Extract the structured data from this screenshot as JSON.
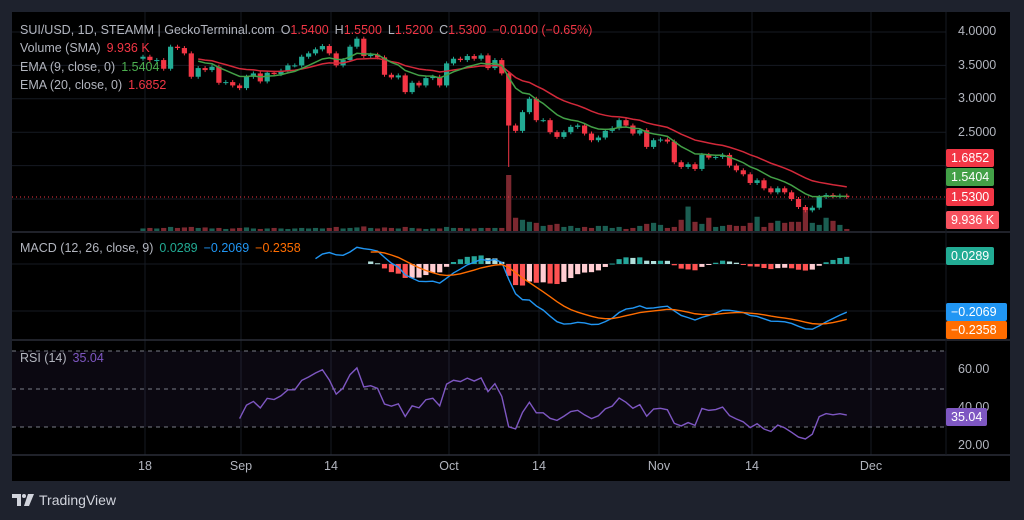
{
  "header": {
    "symbol": "SUI/USD, 1D, STEAMM | GeckoTerminal.com",
    "o_label": "O",
    "o": "1.5400",
    "h_label": "H",
    "h": "1.5500",
    "l_label": "L",
    "l": "1.5200",
    "c_label": "C",
    "c": "1.5300",
    "change": "−0.0100 (−0.65%)"
  },
  "legends": {
    "volume": {
      "label": "Volume (SMA)",
      "value": "9.936 K"
    },
    "ema9": {
      "label": "EMA (9, close, 0)",
      "value": "1.5404"
    },
    "ema20": {
      "label": "EMA (20, close, 0)",
      "value": "1.6852"
    },
    "macd": {
      "label": "MACD (12, 26, close, 9)",
      "hist": "0.0289",
      "macd": "−0.2069",
      "signal": "−0.2358"
    },
    "rsi": {
      "label": "RSI (14)",
      "value": "35.04"
    }
  },
  "price_axis": {
    "ticks": [
      "4.0000",
      "3.5000",
      "3.0000",
      "2.5000"
    ],
    "tags": {
      "ema20": "1.6852",
      "ema9": "1.5404",
      "last": "1.5300",
      "volume": "9.936 K"
    }
  },
  "macd_axis": {
    "tags": {
      "hist": "0.0289",
      "macd": "−0.2069",
      "signal": "−0.2358"
    }
  },
  "rsi_axis": {
    "ticks": [
      "60.00",
      "40.00",
      "20.00"
    ],
    "tag": "35.04"
  },
  "time_axis": {
    "ticks": [
      "18",
      "Sep",
      "14",
      "Oct",
      "14",
      "Nov",
      "14",
      "Dec"
    ]
  },
  "footer": {
    "brand": "TradingView"
  },
  "colors": {
    "up": "#22ab94",
    "down": "#f23645",
    "up_volume": "#1b5e52",
    "down_volume": "#7c2830",
    "ema9": "#43a047",
    "ema20": "#d3293a",
    "macd": "#2196f3",
    "signal": "#ff6d00",
    "rsi": "#7e57c2",
    "volume_tag": "#f7525f"
  },
  "chart_data": {
    "type": "candlestick",
    "symbol": "SUI/USD",
    "interval": "1D",
    "close": [
      3.63,
      3.58,
      3.58,
      3.45,
      3.78,
      3.76,
      3.68,
      3.33,
      3.46,
      3.43,
      3.48,
      3.24,
      3.25,
      3.2,
      3.16,
      3.33,
      3.38,
      3.26,
      3.39,
      3.37,
      3.42,
      3.5,
      3.5,
      3.63,
      3.68,
      3.74,
      3.79,
      3.68,
      3.5,
      3.58,
      3.78,
      3.9,
      3.64,
      3.66,
      3.62,
      3.36,
      3.32,
      3.35,
      3.1,
      3.24,
      3.2,
      3.31,
      3.33,
      3.2,
      3.53,
      3.6,
      3.58,
      3.64,
      3.6,
      3.65,
      3.46,
      3.58,
      3.38,
      2.6,
      2.52,
      2.8,
      3.0,
      2.68,
      2.68,
      2.5,
      2.43,
      2.5,
      2.58,
      2.6,
      2.48,
      2.38,
      2.42,
      2.52,
      2.56,
      2.68,
      2.6,
      2.48,
      2.53,
      2.28,
      2.38,
      2.39,
      2.36,
      2.05,
      1.98,
      2.02,
      1.95,
      2.16,
      2.12,
      2.13,
      2.16,
      2.0,
      1.93,
      1.87,
      1.74,
      1.78,
      1.66,
      1.6,
      1.66,
      1.6,
      1.5,
      1.38,
      1.33,
      1.37,
      1.53,
      1.56,
      1.54,
      1.55,
      1.53
    ],
    "volume_k": [
      5,
      6,
      5,
      6,
      8,
      6,
      7,
      8,
      6,
      7,
      5,
      6,
      4,
      5,
      6,
      7,
      5,
      4,
      5,
      6,
      5,
      4,
      5,
      6,
      5,
      6,
      5,
      6,
      8,
      5,
      6,
      7,
      9,
      6,
      5,
      7,
      6,
      5,
      8,
      6,
      5,
      4,
      5,
      5,
      8,
      6,
      6,
      5,
      5,
      6,
      6,
      6,
      6,
      110,
      26,
      22,
      18,
      16,
      10,
      12,
      14,
      8,
      10,
      6,
      8,
      6,
      10,
      10,
      6,
      8,
      4,
      6,
      10,
      14,
      16,
      12,
      6,
      8,
      22,
      48,
      18,
      14,
      26,
      8,
      10,
      12,
      10,
      10,
      16,
      28,
      8,
      16,
      20,
      16,
      18,
      18,
      40,
      16,
      12,
      26,
      20,
      12,
      4
    ],
    "notable_low": {
      "index": 53,
      "value": 1.98
    },
    "price_range": [
      1.2,
      4.0
    ],
    "rsi_bands": [
      30,
      50,
      70
    ],
    "indicators": [
      "Volume (SMA)",
      "EMA 9",
      "EMA 20",
      "MACD (12, 26, 9)",
      "RSI (14)"
    ]
  }
}
